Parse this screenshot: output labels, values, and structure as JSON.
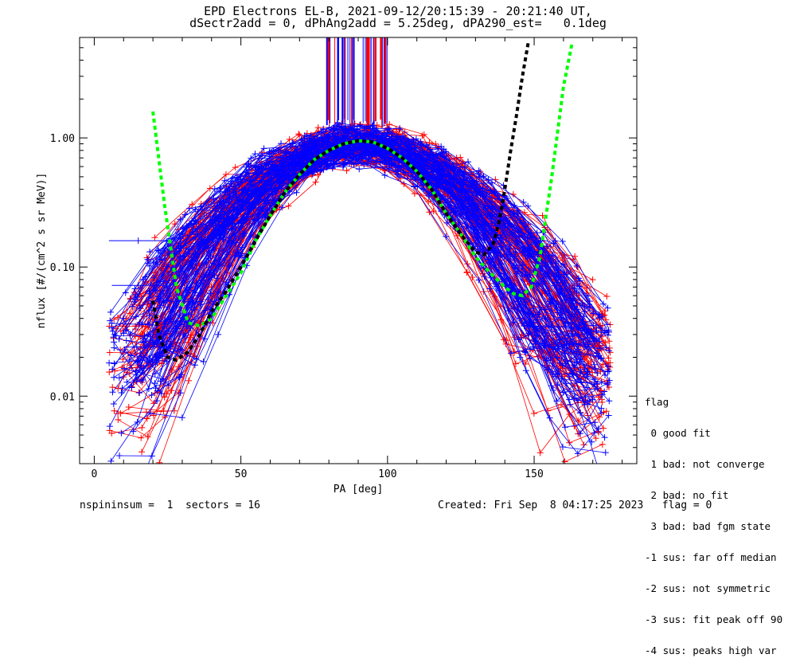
{
  "title_line1": "EPD Electrons EL-B, 2021-09-12/20:15:39 - 20:21:40 UT,",
  "title_line2": "dSectr2add = 0, dPhAng2add = 5.25deg, dPA290_est=   0.1deg",
  "footer_left": "nspininsum =  1  sectors = 16",
  "footer_right": "Created: Fri Sep  8 04:17:25 2023   flag = 0",
  "legend": {
    "title": "flag",
    "items": [
      " 0 good fit",
      " 1 bad: not converge",
      " 2 bad: no fit",
      " 3 bad: bad fgm state",
      "-1 sus: far off median",
      "-2 sus: not symmetric",
      "-3 sus: fit peak off 90",
      "-4 sus: peaks high var"
    ]
  },
  "colors": {
    "red_series": "#ff0000",
    "blue_series": "#0000ff",
    "green_fit": "#00ff00",
    "black_fit": "#000000"
  },
  "chart_data": {
    "type": "line",
    "xlabel": "PA [deg]",
    "ylabel": "nflux [#/(cm^2 s sr MeV)]",
    "xlim": [
      -5,
      185
    ],
    "ylim": [
      0.003,
      6.0
    ],
    "yscale": "log",
    "xticks": [
      0,
      50,
      100,
      150
    ],
    "yticks": [
      0.01,
      0.1,
      1.0
    ],
    "ytick_labels": [
      "0.01",
      "0.10",
      "1.00"
    ],
    "series": [
      {
        "color": "green",
        "style": "dashed",
        "x": [
          20,
          24,
          28,
          32,
          36,
          40,
          45,
          50,
          55,
          60,
          65,
          70,
          75,
          80,
          85,
          90,
          95,
          100,
          105,
          110,
          115,
          120,
          125,
          130,
          135,
          140,
          143,
          146,
          149,
          152,
          156,
          160,
          163
        ],
        "y": [
          1.6,
          0.3,
          0.07,
          0.037,
          0.035,
          0.04,
          0.06,
          0.09,
          0.16,
          0.25,
          0.38,
          0.52,
          0.68,
          0.8,
          0.9,
          0.95,
          0.93,
          0.83,
          0.7,
          0.55,
          0.4,
          0.26,
          0.18,
          0.12,
          0.09,
          0.07,
          0.062,
          0.06,
          0.07,
          0.12,
          0.5,
          2.5,
          5.5
        ]
      },
      {
        "color": "black",
        "style": "dashed",
        "x": [
          20,
          22,
          25,
          28,
          32,
          36,
          40,
          45,
          50,
          55,
          60,
          65,
          70,
          75,
          80,
          85,
          90,
          95,
          100,
          105,
          110,
          115,
          120,
          125,
          130,
          133,
          136,
          138,
          140,
          142,
          144,
          146,
          148
        ],
        "y": [
          0.055,
          0.03,
          0.02,
          0.019,
          0.022,
          0.03,
          0.045,
          0.065,
          0.1,
          0.16,
          0.25,
          0.38,
          0.52,
          0.68,
          0.8,
          0.9,
          0.95,
          0.93,
          0.83,
          0.7,
          0.55,
          0.4,
          0.26,
          0.18,
          0.13,
          0.125,
          0.15,
          0.22,
          0.4,
          0.8,
          1.5,
          3.0,
          5.5
        ]
      }
    ],
    "bundle_peak_flux": 0.9,
    "bundle_peak_pa": 90
  }
}
